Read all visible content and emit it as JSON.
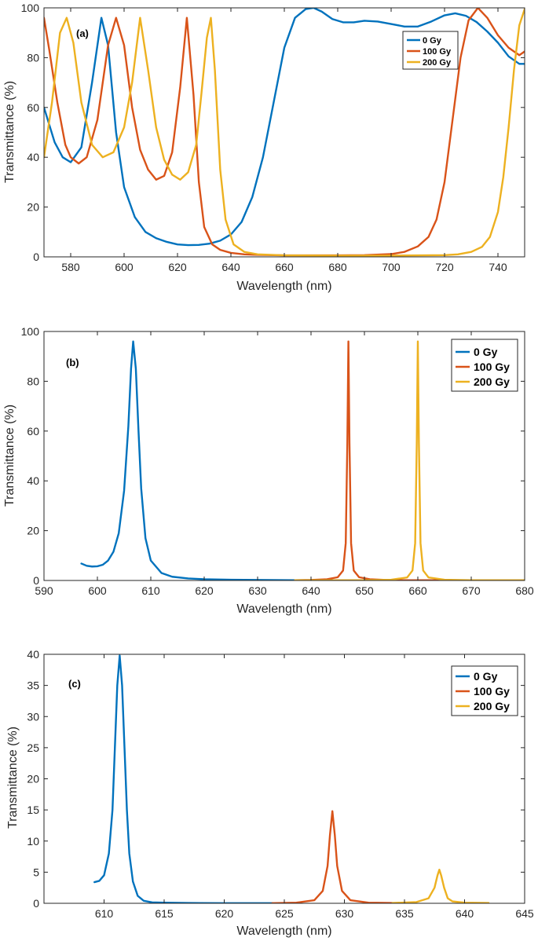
{
  "colors": {
    "series_0": "#0072BD",
    "series_100": "#D95319",
    "series_200": "#EDB120",
    "axis": "#262626"
  },
  "chart_data": [
    {
      "type": "line",
      "panel_label": "(a)",
      "xlabel": "Wavelength (nm)",
      "ylabel": "Transmittance (%)",
      "xlim": [
        570,
        750
      ],
      "ylim": [
        0,
        100
      ],
      "xticks": [
        580,
        600,
        620,
        640,
        660,
        680,
        700,
        720,
        740
      ],
      "yticks": [
        0,
        20,
        40,
        60,
        80,
        100
      ],
      "legend_position": "top-right",
      "series": [
        {
          "name": "0 Gy",
          "x": [
            570,
            574,
            577,
            580,
            584,
            588,
            591.5,
            594,
            597,
            600,
            604,
            608,
            612,
            616,
            620,
            624,
            628,
            632,
            636,
            640,
            644,
            648,
            652,
            656,
            660,
            664,
            668,
            671,
            674,
            678,
            682,
            686,
            690,
            695,
            700,
            705,
            710,
            715,
            720,
            724,
            728,
            732,
            736,
            740,
            744,
            748,
            750
          ],
          "y": [
            60,
            46,
            40,
            38,
            44,
            70,
            96,
            85,
            50,
            28,
            16,
            10,
            7.5,
            6,
            5,
            4.7,
            4.8,
            5.3,
            6.5,
            9,
            14,
            24,
            40,
            62,
            84,
            96,
            99.5,
            100,
            98.5,
            95.5,
            94.2,
            94.2,
            94.8,
            94.5,
            93.5,
            92.5,
            92.5,
            94.5,
            97,
            97.8,
            96.8,
            94.3,
            90.5,
            86,
            80.5,
            77.5,
            77.5
          ]
        },
        {
          "name": "100 Gy",
          "x": [
            570,
            572,
            575,
            578,
            580,
            583,
            586,
            590,
            594,
            597,
            600,
            603,
            606,
            609,
            612,
            615,
            618,
            621,
            623.5,
            626,
            628,
            630,
            633,
            636,
            640,
            645,
            650,
            660,
            670,
            680,
            690,
            700,
            705,
            710,
            714,
            717,
            720,
            723,
            726,
            729,
            732.5,
            736,
            740,
            744,
            748,
            750
          ],
          "y": [
            96,
            83,
            62,
            45,
            40,
            37.5,
            40,
            55,
            85,
            96,
            85,
            60,
            43,
            35,
            31,
            32.5,
            42,
            68,
            96,
            65,
            30,
            12,
            5,
            2.8,
            1.6,
            1.0,
            0.8,
            0.6,
            0.6,
            0.6,
            0.7,
            1.1,
            2.0,
            4.2,
            8,
            15,
            30,
            55,
            80,
            95,
            100,
            96,
            89,
            84,
            81,
            82.5
          ]
        },
        {
          "name": "200 Gy",
          "x": [
            570,
            573,
            576,
            578.5,
            581,
            584,
            588,
            592,
            596,
            600,
            603,
            606,
            609,
            612,
            615,
            618,
            621,
            624,
            627,
            629,
            631,
            632.5,
            634,
            636,
            638,
            641,
            645,
            650,
            660,
            680,
            700,
            720,
            725,
            730,
            734,
            737,
            740,
            742,
            744,
            746,
            748,
            750
          ],
          "y": [
            40,
            62,
            90,
            96,
            86,
            62,
            45,
            40,
            42,
            52,
            70,
            96,
            75,
            52,
            39,
            33,
            31,
            34,
            45,
            66,
            88,
            96,
            75,
            35,
            15,
            5,
            2,
            1,
            0.6,
            0.5,
            0.5,
            0.7,
            1,
            2,
            4,
            8,
            18,
            32,
            52,
            75,
            93,
            99.5
          ]
        }
      ]
    },
    {
      "type": "line",
      "panel_label": "(b)",
      "xlabel": "Wavelength (nm)",
      "ylabel": "Transmittance (%)",
      "xlim": [
        590,
        680
      ],
      "ylim": [
        0,
        100
      ],
      "xticks": [
        590,
        600,
        610,
        620,
        630,
        640,
        650,
        660,
        670,
        680
      ],
      "yticks": [
        0,
        20,
        40,
        60,
        80,
        100
      ],
      "legend_position": "top-right",
      "series": [
        {
          "name": "0 Gy",
          "x": [
            597,
            598,
            599,
            600,
            601,
            602,
            603,
            604,
            605,
            605.8,
            606.3,
            606.7,
            607.2,
            607.7,
            608.2,
            609,
            610,
            612,
            614,
            617,
            620,
            625,
            630,
            637
          ],
          "y": [
            6.8,
            5.9,
            5.6,
            5.7,
            6.3,
            8,
            11.5,
            19,
            36,
            62,
            85,
            96,
            85,
            60,
            37,
            17,
            8,
            3,
            1.5,
            0.8,
            0.5,
            0.3,
            0.2,
            0.1
          ]
        },
        {
          "name": "100 Gy",
          "x": [
            637,
            640,
            643,
            645,
            646,
            646.5,
            646.8,
            647.0,
            647.2,
            647.5,
            648,
            649,
            651,
            654,
            658,
            662,
            670,
            680
          ],
          "y": [
            0.1,
            0.2,
            0.5,
            1.3,
            4,
            15,
            55,
            96,
            55,
            15,
            4,
            1.3,
            0.5,
            0.2,
            0.1,
            0.1,
            0.1,
            0.1
          ]
        },
        {
          "name": "200 Gy",
          "x": [
            637,
            645,
            650,
            655,
            658,
            659,
            659.5,
            659.8,
            660.0,
            660.2,
            660.5,
            661,
            662,
            665,
            670,
            680
          ],
          "y": [
            0.1,
            0.1,
            0.1,
            0.3,
            1.2,
            4,
            15,
            55,
            96,
            55,
            15,
            4,
            1.2,
            0.3,
            0.1,
            0.1
          ]
        }
      ]
    },
    {
      "type": "line",
      "panel_label": "(c)",
      "xlabel": "Wavelength (nm)",
      "ylabel": "Transmittance (%)",
      "xlim": [
        605,
        645
      ],
      "ylim": [
        0,
        40
      ],
      "xticks": [
        610,
        615,
        620,
        625,
        630,
        635,
        640,
        645
      ],
      "yticks": [
        0,
        5,
        10,
        15,
        20,
        25,
        30,
        35,
        40
      ],
      "legend_position": "top-right",
      "series": [
        {
          "name": "0 Gy",
          "x": [
            609.2,
            609.6,
            610,
            610.4,
            610.7,
            610.9,
            611.1,
            611.3,
            611.5,
            611.7,
            611.9,
            612.1,
            612.4,
            612.8,
            613.3,
            614,
            615,
            617,
            620,
            624
          ],
          "y": [
            3.4,
            3.6,
            4.5,
            8,
            15,
            25,
            35,
            39.8,
            35,
            25,
            15,
            8,
            3.5,
            1.2,
            0.4,
            0.15,
            0.1,
            0.05,
            0.02,
            0.02
          ]
        },
        {
          "name": "100 Gy",
          "x": [
            624,
            626,
            627.5,
            628.2,
            628.6,
            628.8,
            629.0,
            629.2,
            629.4,
            629.8,
            630.5,
            632,
            634
          ],
          "y": [
            0.02,
            0.1,
            0.5,
            2,
            6,
            11,
            14.8,
            11,
            6,
            2,
            0.5,
            0.1,
            0.05
          ]
        },
        {
          "name": "200 Gy",
          "x": [
            634,
            636,
            637,
            637.5,
            637.75,
            637.9,
            638.05,
            638.3,
            638.6,
            639,
            640,
            642
          ],
          "y": [
            0.05,
            0.2,
            0.8,
            2.5,
            4.5,
            5.4,
            4.5,
            2.5,
            0.8,
            0.3,
            0.1,
            0.05
          ]
        }
      ]
    }
  ]
}
